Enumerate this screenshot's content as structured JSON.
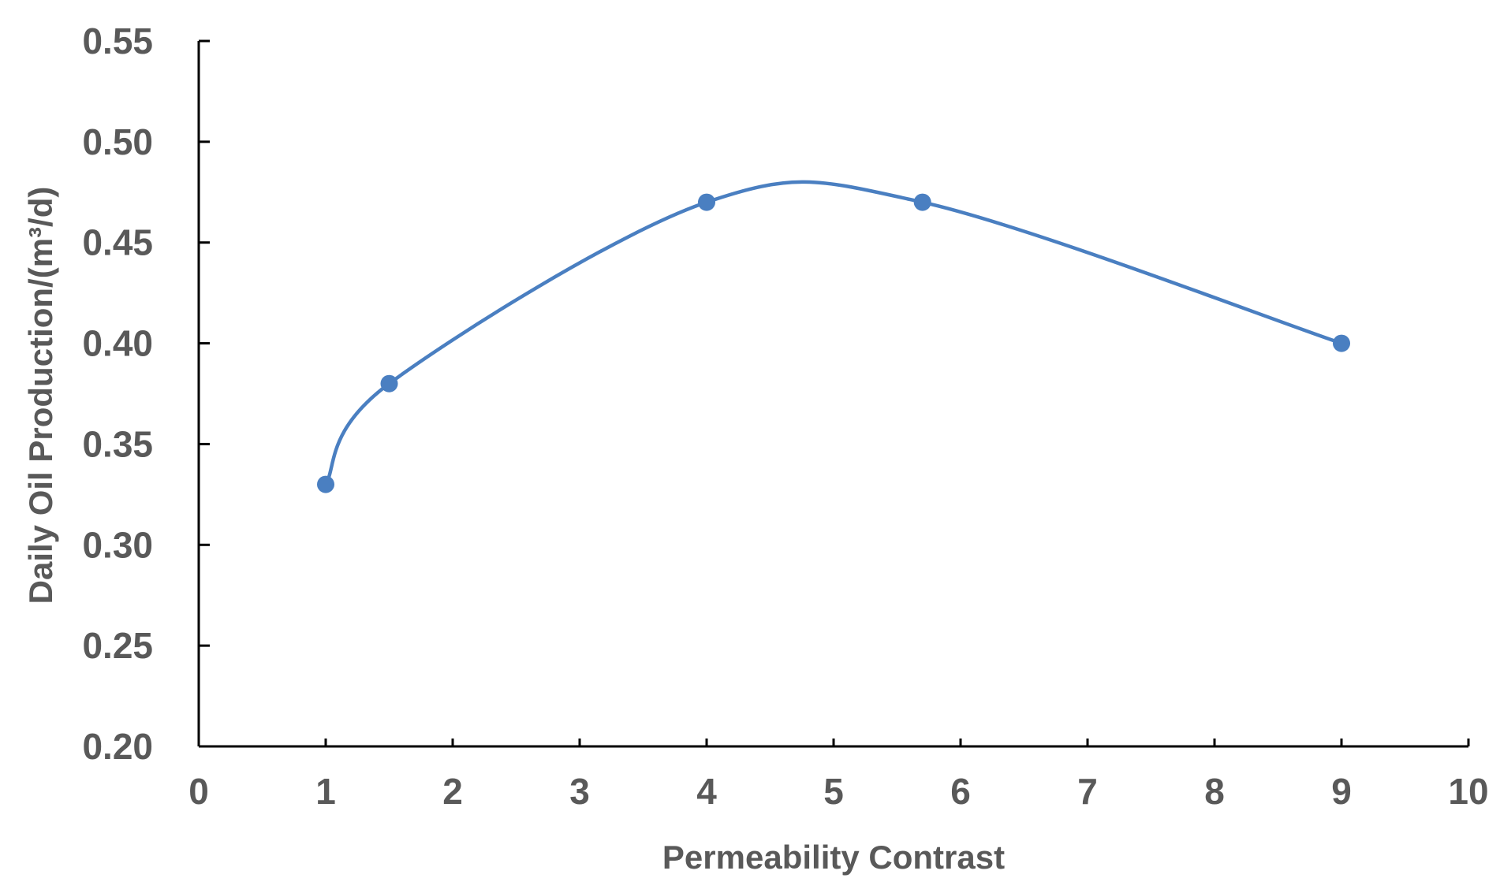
{
  "chart_data": {
    "type": "line",
    "title": "",
    "xlabel": "Permeability Contrast",
    "ylabel": "Daily Oil Production/(m³/d)",
    "xlim": [
      0,
      10
    ],
    "ylim": [
      0.2,
      0.55
    ],
    "x_ticks": [
      "0",
      "1",
      "2",
      "3",
      "4",
      "5",
      "6",
      "7",
      "8",
      "9",
      "10"
    ],
    "y_ticks": [
      "0.20",
      "0.25",
      "0.30",
      "0.35",
      "0.40",
      "0.45",
      "0.50",
      "0.55"
    ],
    "grid": false,
    "smooth": true,
    "marker": "circle",
    "series": [
      {
        "x": [
          1,
          1.5,
          4,
          5.7,
          9
        ],
        "values": [
          0.33,
          0.38,
          0.47,
          0.47,
          0.4
        ],
        "color": "#4a7fc1"
      }
    ],
    "axis_color": "#000000",
    "text_color": "#595959"
  }
}
